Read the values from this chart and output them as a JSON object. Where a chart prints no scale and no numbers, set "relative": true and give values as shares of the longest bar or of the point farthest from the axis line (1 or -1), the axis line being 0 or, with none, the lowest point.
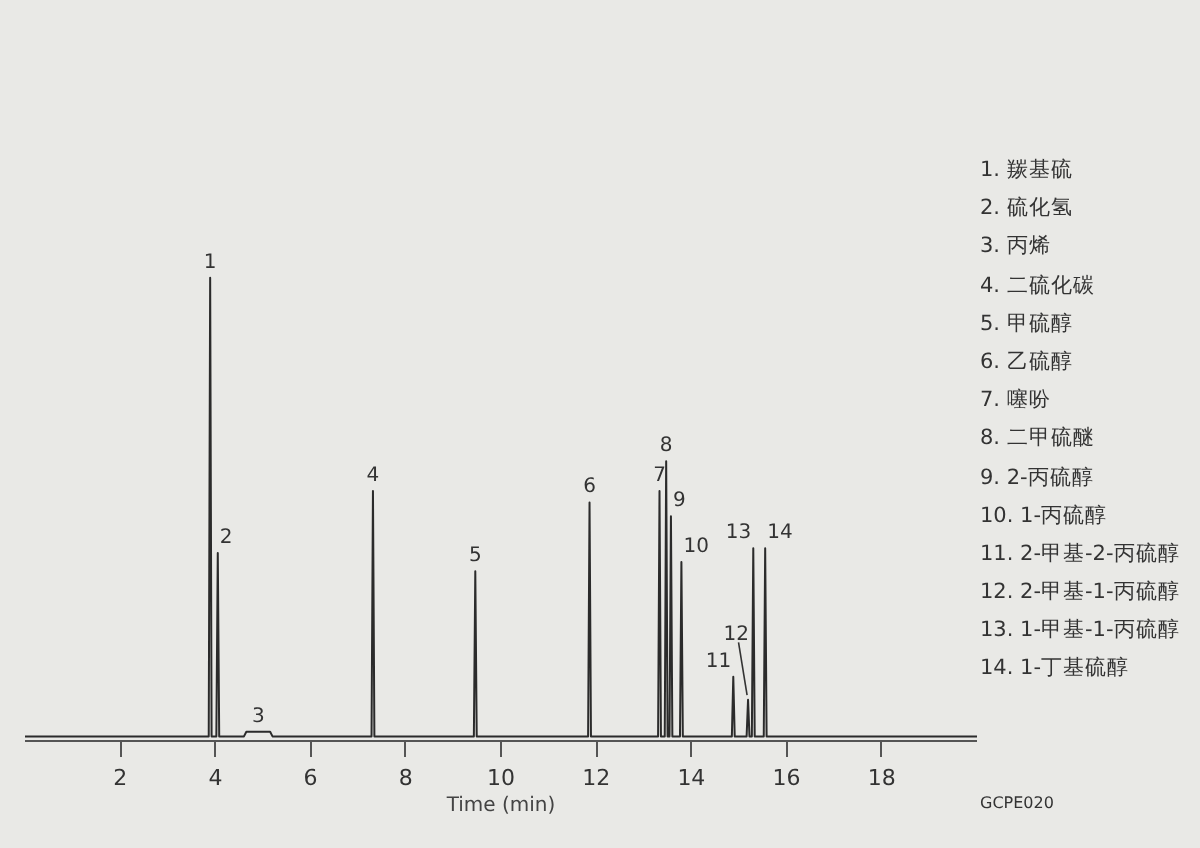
{
  "chart_data": {
    "type": "line",
    "relative": true,
    "xlabel": "Time (min)",
    "xlim": [
      0,
      20
    ],
    "xticks": [
      2,
      4,
      6,
      8,
      10,
      12,
      14,
      16,
      18
    ],
    "line_style": "solid",
    "series": [
      {
        "color": "#2b2b2b",
        "x": [
          0,
          3.86,
          3.89,
          3.92,
          4.02,
          4.05,
          4.08,
          4.6,
          4.65,
          5.15,
          5.2,
          7.28,
          7.31,
          7.34,
          9.43,
          9.46,
          9.49,
          11.83,
          11.86,
          11.89,
          13.3,
          13.33,
          13.36,
          13.44,
          13.47,
          13.5,
          13.54,
          13.57,
          13.6,
          13.76,
          13.79,
          13.82,
          14.85,
          14.88,
          14.91,
          15.16,
          15.19,
          15.22,
          15.27,
          15.3,
          15.33,
          15.52,
          15.55,
          15.58,
          20
        ],
        "values": [
          0,
          0,
          1.0,
          0,
          0,
          0.4,
          0,
          0,
          0.01,
          0.01,
          0,
          0,
          0.535,
          0,
          0,
          0.36,
          0,
          0,
          0.51,
          0,
          0,
          0.535,
          0,
          0,
          0.6,
          0,
          0,
          0.48,
          0,
          0,
          0.38,
          0,
          0,
          0.13,
          0,
          0,
          0.08,
          0,
          0,
          0.41,
          0,
          0,
          0.41,
          0,
          0
        ]
      }
    ],
    "annotations": [
      {
        "text": "1",
        "x": 3.89,
        "y": 1.0
      },
      {
        "text": "2",
        "x": 4.05,
        "y": 0.4
      },
      {
        "text": "3",
        "x": 4.9,
        "y": 0.01
      },
      {
        "text": "4",
        "x": 7.31,
        "y": 0.535
      },
      {
        "text": "5",
        "x": 9.46,
        "y": 0.36
      },
      {
        "text": "6",
        "x": 11.86,
        "y": 0.51
      },
      {
        "text": "7",
        "x": 13.33,
        "y": 0.535
      },
      {
        "text": "8",
        "x": 13.47,
        "y": 0.6
      },
      {
        "text": "9",
        "x": 13.57,
        "y": 0.48
      },
      {
        "text": "10",
        "x": 13.79,
        "y": 0.38
      },
      {
        "text": "11",
        "x": 14.88,
        "y": 0.13
      },
      {
        "text": "12",
        "x": 15.19,
        "y": 0.08
      },
      {
        "text": "13",
        "x": 15.3,
        "y": 0.41
      },
      {
        "text": "14",
        "x": 15.55,
        "y": 0.41
      },
      "1.  羰基硫",
      "2.  硫化氢",
      "3.  丙烯",
      "4.  二硫化碳",
      "5.  甲硫醇",
      "6.  乙硫醇",
      "7.  噻吩",
      "8.  二甲硫醚",
      "9.  2-丙硫醇",
      "10.  1-丙硫醇",
      "11.  2-甲基-2-丙硫醇",
      "12.  2-甲基-1-丙硫醇",
      "13.  1-甲基-1-丙硫醇",
      "14.  1-丁基硫醇",
      "GCPE020"
    ]
  }
}
